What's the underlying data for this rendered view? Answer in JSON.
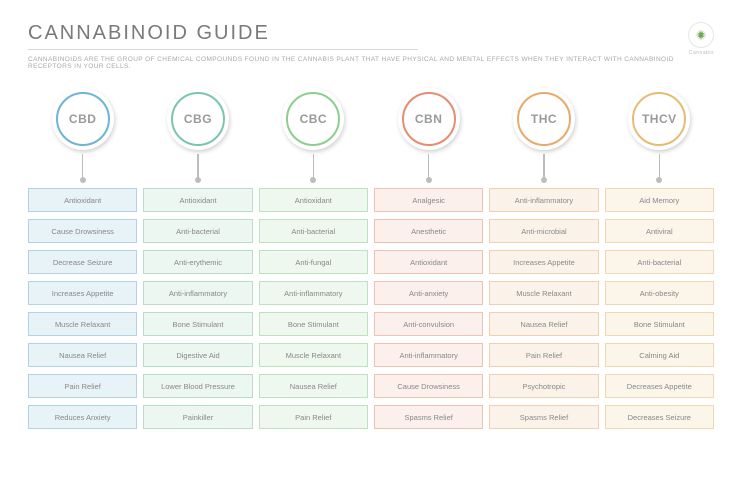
{
  "title": "CANNABINOID GUIDE",
  "subtitle": "CANNABINOIDS ARE THE GROUP OF CHEMICAL COMPOUNDS FOUND IN THE CANNABIS PLANT THAT HAVE PHYSICAL AND MENTAL EFFECTS WHEN THEY INTERACT WITH CANNABINOID RECEPTORS IN YOUR CELLS.",
  "logo_label": "Cannabis",
  "background_color": "#ffffff",
  "title_color": "#7a7a7a",
  "subtitle_color": "#a8a8a8",
  "stem_color": "#bdbdbd",
  "item_text_color": "#888888",
  "columns": [
    {
      "abbr": "CBD",
      "ring_color": "#6db4d6",
      "fill_color": "#e8f3f8",
      "border_color": "#aed4e5",
      "items": [
        "Antioxidant",
        "Cause Drowsiness",
        "Decrease Seizure",
        "Increases Appetite",
        "Muscle Relaxant",
        "Nausea Relief",
        "Pain Relief",
        "Reduces Anxiety"
      ]
    },
    {
      "abbr": "CBG",
      "ring_color": "#7bc6a8",
      "fill_color": "#ecf7f2",
      "border_color": "#b6ddcd",
      "items": [
        "Antioxidant",
        "Anti-bacterial",
        "Anti-erythemic",
        "Anti-inflammatory",
        "Bone Stimulant",
        "Digestive Aid",
        "Lower Blood Pressure",
        "Painkiller"
      ]
    },
    {
      "abbr": "CBC",
      "ring_color": "#8bcf8e",
      "fill_color": "#eef8ee",
      "border_color": "#bde3be",
      "items": [
        "Antioxidant",
        "Anti-bacterial",
        "Anti-fungal",
        "Anti-inflammatory",
        "Bone Stimulant",
        "Muscle Relaxant",
        "Nausea Relief",
        "Pain Relief"
      ]
    },
    {
      "abbr": "CBN",
      "ring_color": "#e88b6f",
      "fill_color": "#fbf0eb",
      "border_color": "#f0c2b2",
      "items": [
        "Analgesic",
        "Anesthetic",
        "Antioxidant",
        "Anti-anxiety",
        "Anti-convulsion",
        "Anti-inflammatory",
        "Cause Drowsiness",
        "Spasms Relief"
      ]
    },
    {
      "abbr": "THC",
      "ring_color": "#e8a96b",
      "fill_color": "#fbf3e9",
      "border_color": "#f0d1ae",
      "items": [
        "Anti-inflammatory",
        "Anti-microbial",
        "Increases Appetite",
        "Muscle Relaxant",
        "Nausea Relief",
        "Pain Relief",
        "Psychotropic",
        "Spasms Relief"
      ]
    },
    {
      "abbr": "THCV",
      "ring_color": "#e6bb72",
      "fill_color": "#fbf5ea",
      "border_color": "#efd9b2",
      "items": [
        "Aid Memory",
        "Antiviral",
        "Anti-bacterial",
        "Anti-obesity",
        "Bone Stimulant",
        "Calming Aid",
        "Decreases Appetite",
        "Decreases Seizure"
      ]
    }
  ]
}
